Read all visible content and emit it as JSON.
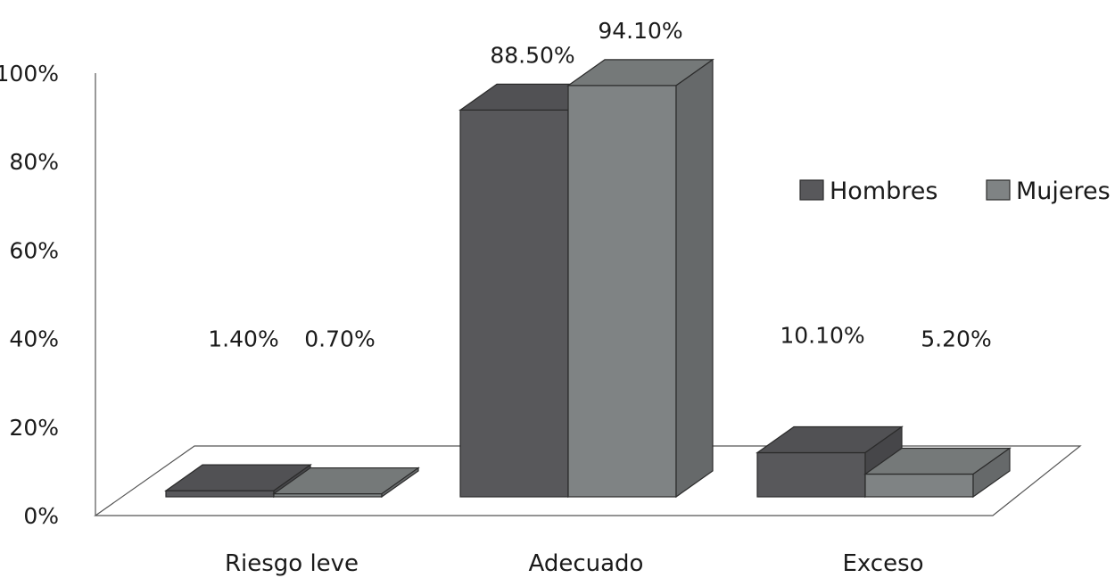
{
  "chart_data": {
    "type": "bar",
    "title": "",
    "xlabel": "",
    "ylabel": "",
    "ylim": [
      0,
      100
    ],
    "yticks": [
      "0%",
      "20%",
      "40%",
      "60%",
      "80%",
      "100%"
    ],
    "categories": [
      "Riesgo leve",
      "Adecuado",
      "Exceso"
    ],
    "series": [
      {
        "name": "Hombres",
        "color": "#58585b",
        "values": [
          1.4,
          88.5,
          10.1
        ],
        "labels": [
          "1.40%",
          "88.50%",
          "10.10%"
        ]
      },
      {
        "name": "Mujeres",
        "color": "#7f8384",
        "values": [
          0.7,
          94.1,
          5.2
        ],
        "labels": [
          "0.70%",
          "94.10%",
          "5.20%"
        ]
      }
    ],
    "legend_position": "right",
    "grid": false,
    "style": "3d-column"
  }
}
